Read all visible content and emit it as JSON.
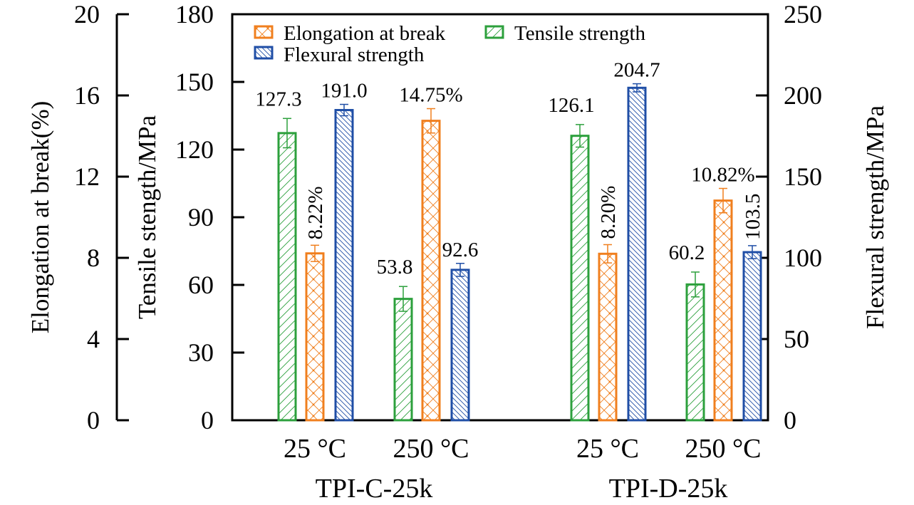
{
  "chart_data": {
    "type": "bar",
    "title": "",
    "groups": [
      "TPI-C-25k",
      "TPI-D-25k"
    ],
    "categories": [
      "25 °C",
      "250 °C",
      "25 °C",
      "250 °C"
    ],
    "category_group": [
      0,
      0,
      1,
      1
    ],
    "series": [
      {
        "name": "Tensile strength",
        "axis": "tensile",
        "color": "#2ca03c",
        "pattern": "forward-diagonal",
        "values": [
          127.3,
          53.8,
          126.1,
          60.2
        ],
        "errors": [
          6.5,
          5.5,
          5.0,
          5.5
        ],
        "labels": [
          "127.3",
          "53.8",
          "126.1",
          "60.2"
        ]
      },
      {
        "name": "Elongation at break",
        "axis": "elongation",
        "color": "#f07f1e",
        "pattern": "crosshatch",
        "values": [
          8.22,
          14.75,
          8.2,
          10.82
        ],
        "errors": [
          0.4,
          0.6,
          0.45,
          0.6
        ],
        "labels": [
          "8.22%",
          "14.75%",
          "8.20%",
          "10.82%"
        ],
        "label_rotated": [
          true,
          false,
          true,
          false
        ]
      },
      {
        "name": "Flexural strength",
        "axis": "flexural",
        "color": "#1f4ea6",
        "pattern": "back-diagonal",
        "values": [
          191.0,
          92.6,
          204.7,
          103.5
        ],
        "errors": [
          3.5,
          4.0,
          2.5,
          4.0
        ],
        "labels": [
          "191.0",
          "92.6",
          "204.7",
          "103.5"
        ],
        "label_rotated": [
          false,
          false,
          false,
          true
        ]
      }
    ],
    "axes": {
      "elongation": {
        "label": "Elongation at break(%)",
        "ylim": [
          0,
          20
        ],
        "ticks": [
          0,
          4,
          8,
          12,
          16,
          20
        ]
      },
      "tensile": {
        "label": "Tensile stength/MPa",
        "ylim": [
          0,
          180
        ],
        "ticks": [
          0,
          30,
          60,
          90,
          120,
          150,
          180
        ]
      },
      "flexural": {
        "label": "Flexural strength/MPa",
        "ylim": [
          0,
          250
        ],
        "ticks": [
          0,
          50,
          100,
          150,
          200,
          250
        ]
      }
    },
    "legend": {
      "placement": "top-left",
      "order": [
        "Elongation at break",
        "Tensile strength",
        "Flexural strength"
      ]
    },
    "grid": false
  }
}
